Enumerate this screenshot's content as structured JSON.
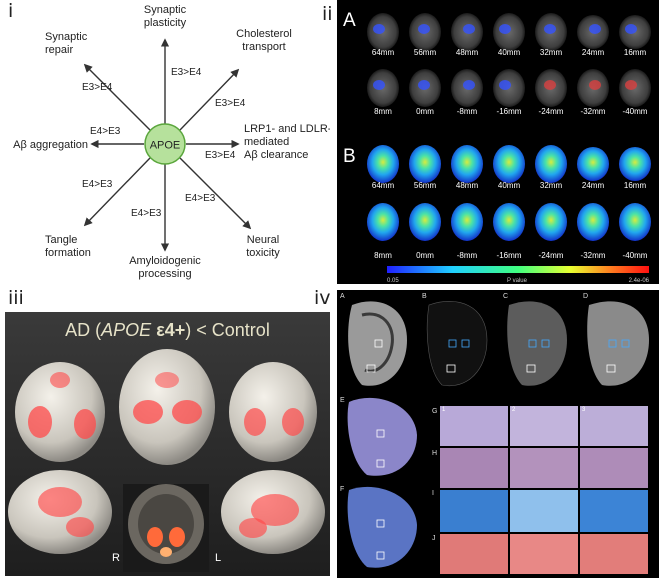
{
  "panels": {
    "i": "i",
    "ii": "ii",
    "iii": "iii",
    "iv": "iv"
  },
  "diagram": {
    "center": "APOE",
    "nodes": {
      "synaptic_plasticity": [
        "Synaptic",
        "plasticity"
      ],
      "cholesterol": [
        "Cholesterol",
        "transport"
      ],
      "lrp1": [
        "LRP1- and LDLR-",
        "mediated",
        "Aβ clearance"
      ],
      "neural_toxicity": [
        "Neural",
        "toxicity"
      ],
      "amyloidogenic": [
        "Amyloidogenic",
        "processing"
      ],
      "tangle": [
        "Tangle",
        "formation"
      ],
      "abeta_agg": [
        "Aβ aggregation"
      ],
      "synaptic_repair": [
        "Synaptic",
        "repair"
      ]
    },
    "edges": {
      "synaptic_plasticity": "E3>E4",
      "cholesterol": "E3>E4",
      "lrp1": "E3>E4",
      "neural_toxicity": "E4>E3",
      "amyloidogenic": "E4>E3",
      "tangle": "E4>E3",
      "abeta_agg": "E4>E3",
      "synaptic_repair": "E3>E4"
    }
  },
  "pet": {
    "row_a_label": "A",
    "row_b_label": "B",
    "slices_top": [
      "64mm",
      "56mm",
      "48mm",
      "40mm",
      "32mm",
      "24mm",
      "16mm"
    ],
    "slices_bottom": [
      "8mm",
      "0mm",
      "-8mm",
      "-16mm",
      "-24mm",
      "-32mm",
      "-40mm"
    ],
    "colorbar_min": "0.05",
    "colorbar_label": "P value",
    "colorbar_max": "2.4e-06"
  },
  "mri": {
    "title_prefix": "AD (",
    "title_gene": "APOE",
    "title_allele": " ε4+",
    "title_suffix": ") < Control",
    "left_label": "R",
    "right_label": "L"
  },
  "histology": {
    "row_labels": [
      "A",
      "B",
      "C",
      "D",
      "E",
      "F",
      "G",
      "H",
      "I",
      "J"
    ],
    "column_numbers": [
      "1",
      "2",
      "3"
    ]
  },
  "colors": {
    "apoe_fill": "#b6e19c",
    "apoe_stroke": "#5aa63c",
    "arrow": "#333333",
    "activation": "#ff4a4a"
  }
}
